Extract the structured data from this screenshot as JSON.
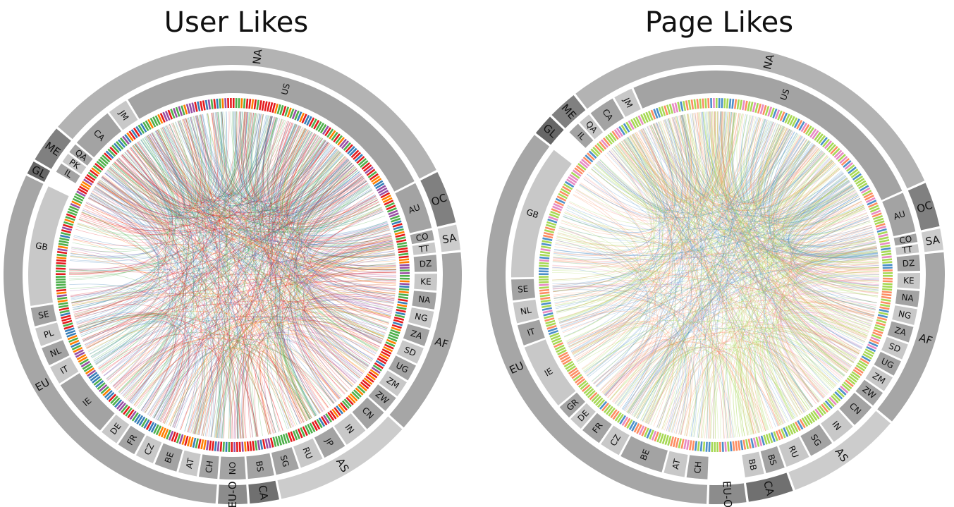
{
  "diagrams": [
    {
      "title": "User Likes",
      "regions": [
        {
          "label": "NA",
          "countries": [
            "CA",
            "JM",
            "US"
          ]
        },
        {
          "label": "OC",
          "countries": [
            "AU"
          ]
        },
        {
          "label": "SA",
          "countries": [
            "CO",
            "TT"
          ]
        },
        {
          "label": "AF",
          "countries": [
            "DZ",
            "KE",
            "NA",
            "NG",
            "ZA",
            "SD",
            "UG",
            "ZM",
            "ZW"
          ]
        },
        {
          "label": "AS",
          "countries": [
            "CN",
            "IN",
            "JP",
            "RU",
            "SG"
          ]
        },
        {
          "label": "CA",
          "countries": [
            "BS"
          ]
        },
        {
          "label": "EU-O",
          "countries": [
            "NO"
          ]
        },
        {
          "label": "EU",
          "countries": [
            "CH",
            "AT",
            "BE",
            "CZ",
            "FR",
            "DE",
            "IE",
            "IT",
            "NL",
            "PL",
            "SE",
            "GB"
          ]
        },
        {
          "label": "GL",
          "countries": []
        },
        {
          "label": "ME",
          "countries": [
            "IL",
            "PK",
            "QA"
          ]
        }
      ]
    },
    {
      "title": "Page Likes",
      "regions": [
        {
          "label": "NA",
          "countries": [
            "CA",
            "JM",
            "US"
          ]
        },
        {
          "label": "OC",
          "countries": [
            "AU"
          ]
        },
        {
          "label": "SA",
          "countries": [
            "CO",
            "TT"
          ]
        },
        {
          "label": "AF",
          "countries": [
            "DZ",
            "KE",
            "NA",
            "NG",
            "ZA",
            "SD",
            "UG",
            "ZM",
            "ZW"
          ]
        },
        {
          "label": "AS",
          "countries": [
            "CN",
            "IN",
            "SG",
            "RU"
          ]
        },
        {
          "label": "CA",
          "countries": [
            "BS",
            "BB"
          ]
        },
        {
          "label": "EU-O",
          "countries": []
        },
        {
          "label": "EU",
          "countries": [
            "CH",
            "AT",
            "BE",
            "CZ",
            "FR",
            "DE",
            "GR",
            "IE",
            "IT",
            "NL",
            "SE",
            "GB"
          ]
        },
        {
          "label": "GL",
          "countries": []
        },
        {
          "label": "ME",
          "countries": [
            "IL",
            "QA"
          ]
        }
      ]
    }
  ]
}
